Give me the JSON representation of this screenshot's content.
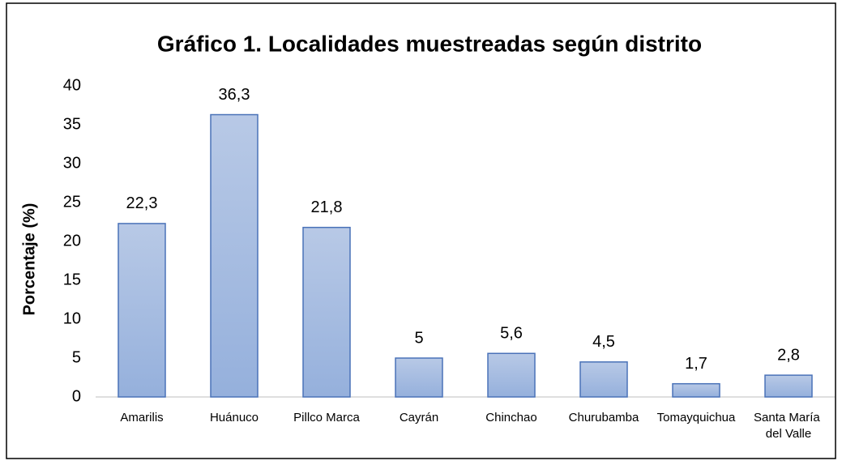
{
  "chart_data": {
    "type": "bar",
    "title": "Gráfico 1. Localidades muestreadas según distrito",
    "ylabel": "Porcentaje (%)",
    "categories": [
      "Amarilis",
      "Huánuco",
      "Pillco Marca",
      "Cayrán",
      "Chinchao",
      "Churubamba",
      "Tomayquichua",
      "Santa María del Valle"
    ],
    "values": [
      22.3,
      36.3,
      21.8,
      5,
      5.6,
      4.5,
      1.7,
      2.8
    ],
    "value_labels": [
      "22,3",
      "36,3",
      "21,8",
      "5",
      "5,6",
      "4,5",
      "1,7",
      "2,8"
    ],
    "color": "#95b0dc",
    "edgecolor": "#4a72b8",
    "ylim": [
      0,
      40
    ],
    "yticks": [
      0,
      5,
      10,
      15,
      20,
      25,
      30,
      35,
      40
    ],
    "grid": false
  }
}
